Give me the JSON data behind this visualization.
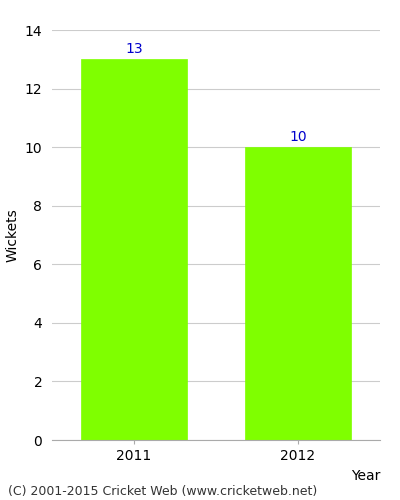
{
  "categories": [
    "2011",
    "2012"
  ],
  "values": [
    13,
    10
  ],
  "bar_color": "#7FFF00",
  "bar_edgecolor": "#7FFF00",
  "label_color": "#0000CC",
  "xlabel": "Year",
  "ylabel": "Wickets",
  "ylim": [
    0,
    14
  ],
  "yticks": [
    0,
    2,
    4,
    6,
    8,
    10,
    12,
    14
  ],
  "grid_color": "#cccccc",
  "background_color": "#ffffff",
  "footer_text": "(C) 2001-2015 Cricket Web (www.cricketweb.net)",
  "label_fontsize": 10,
  "axis_label_fontsize": 10,
  "tick_fontsize": 10,
  "footer_fontsize": 9,
  "bar_width": 0.65
}
